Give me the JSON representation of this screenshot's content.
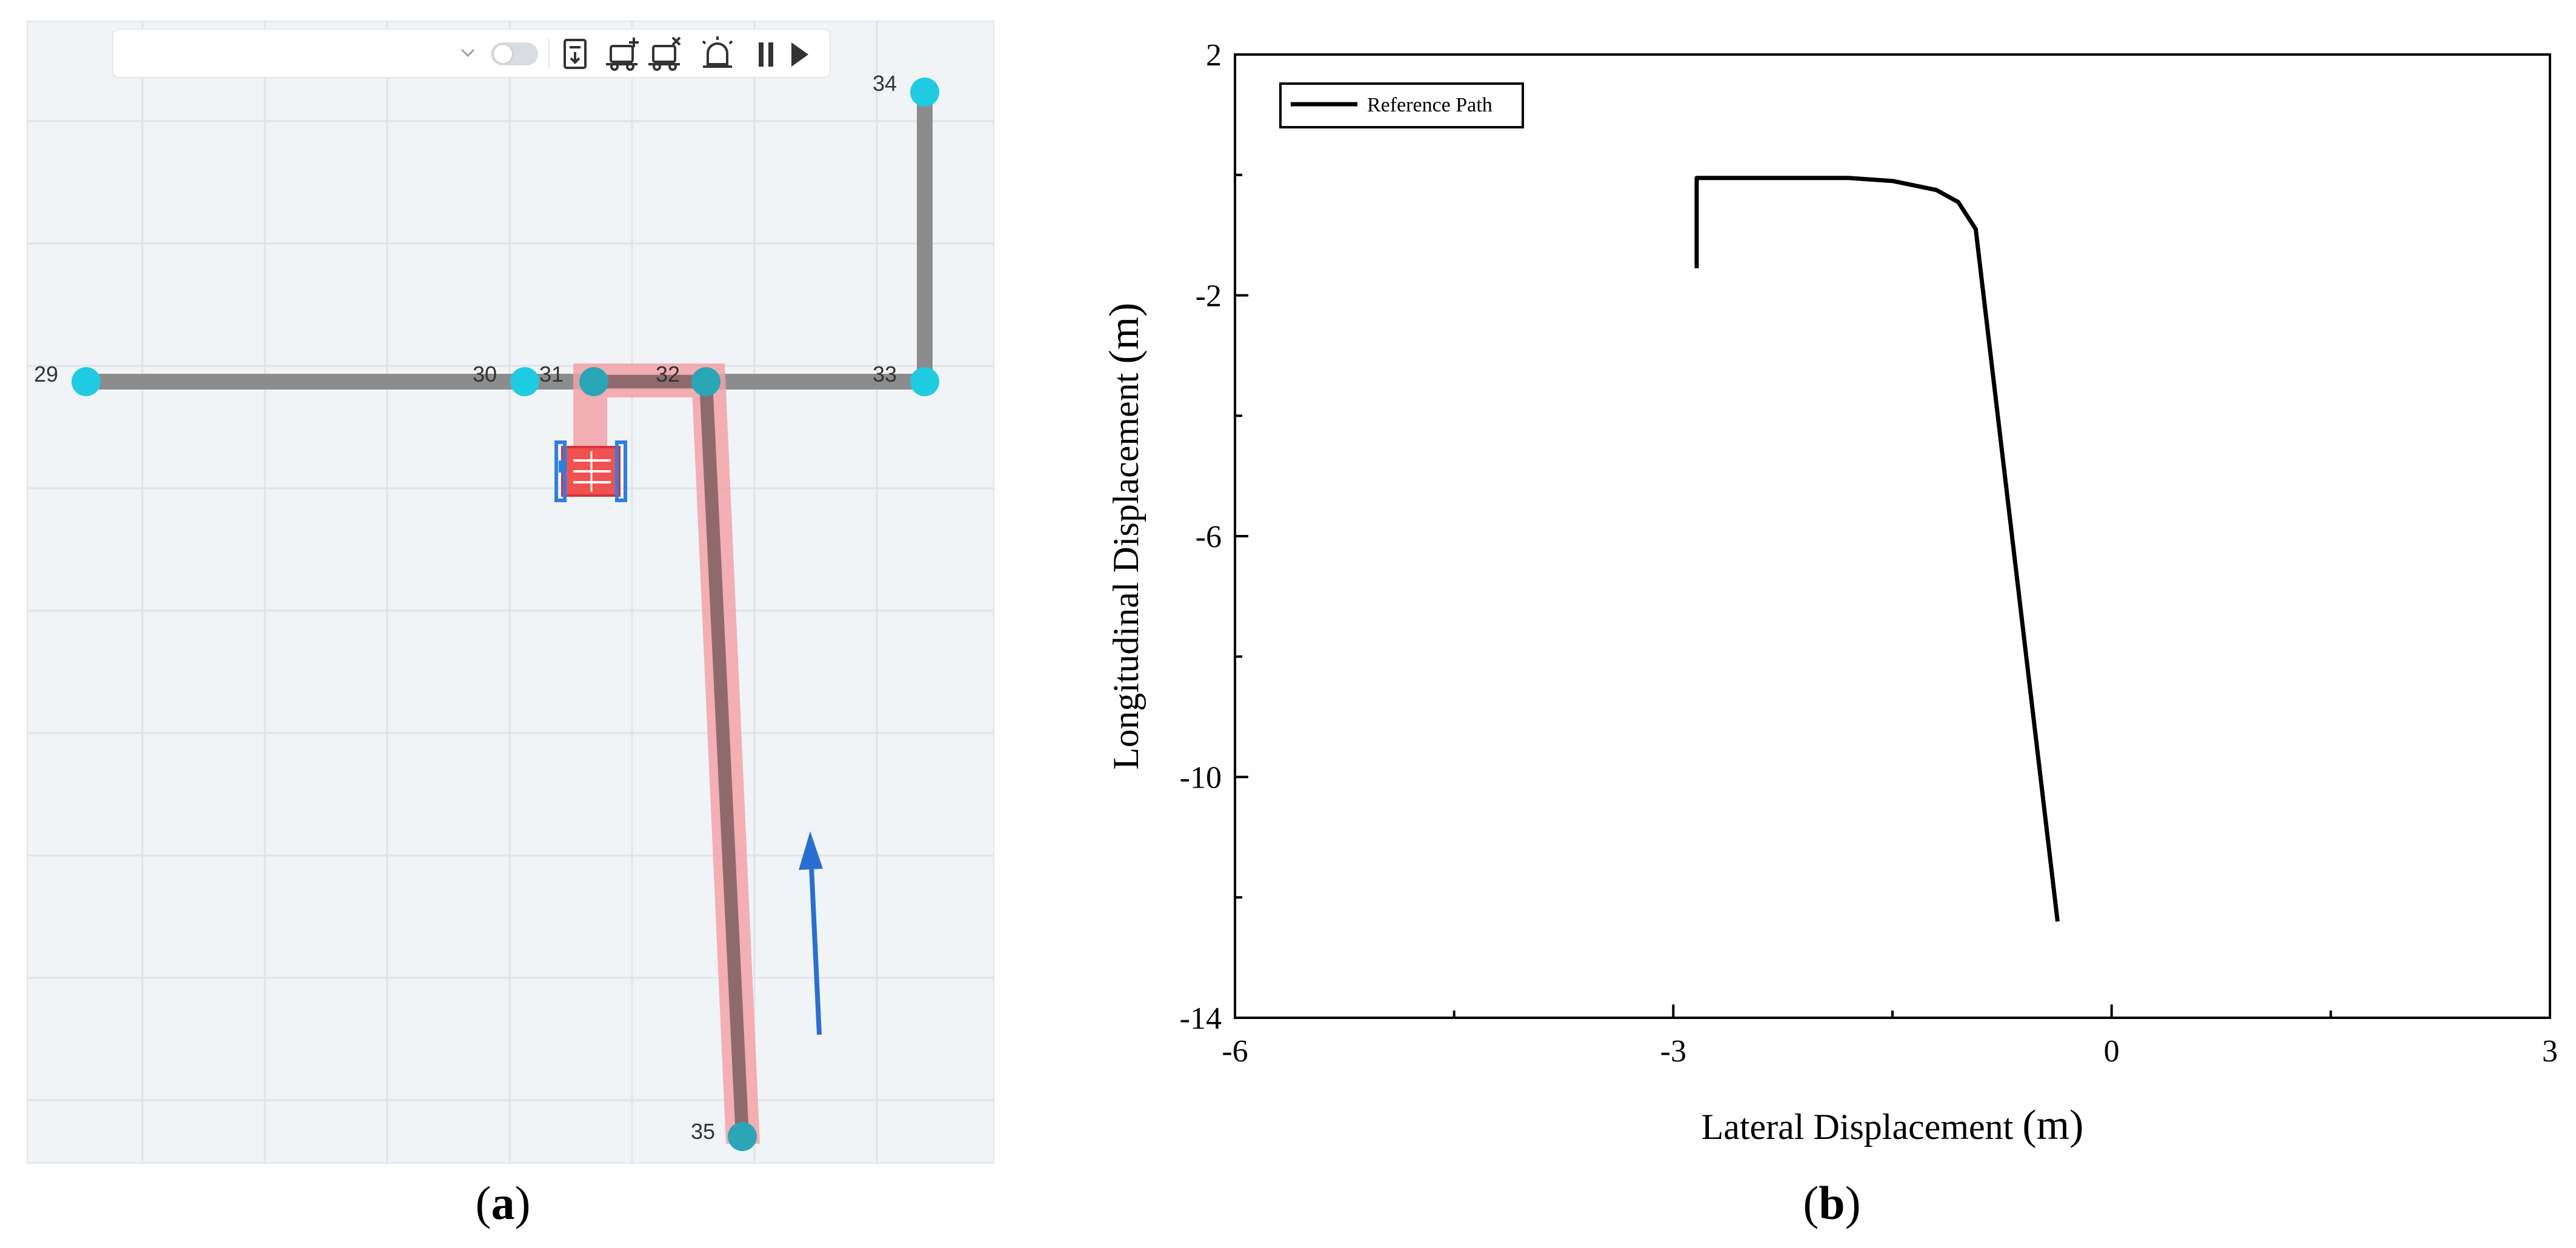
{
  "figure": {
    "panel_a_caption": "a",
    "panel_b_caption": "b"
  },
  "map_view": {
    "toolbar": {
      "dropdown_value": "",
      "toggle_state": "off",
      "icons": [
        "save-icon",
        "add-vehicle-icon",
        "remove-vehicle-icon",
        "alarm-icon",
        "pause-icon",
        "play-icon"
      ]
    },
    "nodes": [
      {
        "id": "29",
        "label": "29"
      },
      {
        "id": "30",
        "label": "30"
      },
      {
        "id": "31",
        "label": "31"
      },
      {
        "id": "32",
        "label": "32"
      },
      {
        "id": "33",
        "label": "33"
      },
      {
        "id": "34",
        "label": "34"
      },
      {
        "id": "35",
        "label": "35"
      }
    ],
    "colors": {
      "grid_bg": "#f1f4f6",
      "grid_line": "#dfe4e8",
      "road": "#8c8c8c",
      "node": "#1ecbe1",
      "planned_path": "#f4a2a8",
      "vehicle": "#f0524f",
      "vehicle_frame": "#2f7fe0",
      "direction_arrow": "#2a6fd0"
    }
  },
  "chart_data": {
    "type": "line",
    "title": "",
    "xlabel": "Lateral Displacement",
    "xlabel_unit": "(m)",
    "ylabel": "Longitudinal Displacement",
    "ylabel_unit": "(m)",
    "xlim": [
      -6,
      3
    ],
    "ylim": [
      -14,
      2
    ],
    "xticks": [
      -6,
      -3,
      0,
      3
    ],
    "yticks": [
      -14,
      -10,
      -6,
      -2,
      2
    ],
    "xtick_labels": [
      "-6",
      "-3",
      "0",
      "3"
    ],
    "ytick_labels": [
      "-14",
      "-10",
      "-6",
      "-2",
      "2"
    ],
    "legend": {
      "position": "top-left",
      "entries": [
        "Reference Path"
      ]
    },
    "series": [
      {
        "name": "Reference Path",
        "color": "#000000",
        "x": [
          -2.84,
          -2.84,
          -2.3,
          -1.8,
          -1.5,
          -1.2,
          -1.05,
          -0.93,
          -0.37
        ],
        "y": [
          -1.55,
          -0.05,
          -0.05,
          -0.05,
          -0.1,
          -0.25,
          -0.45,
          -0.9,
          -12.4
        ]
      }
    ]
  }
}
